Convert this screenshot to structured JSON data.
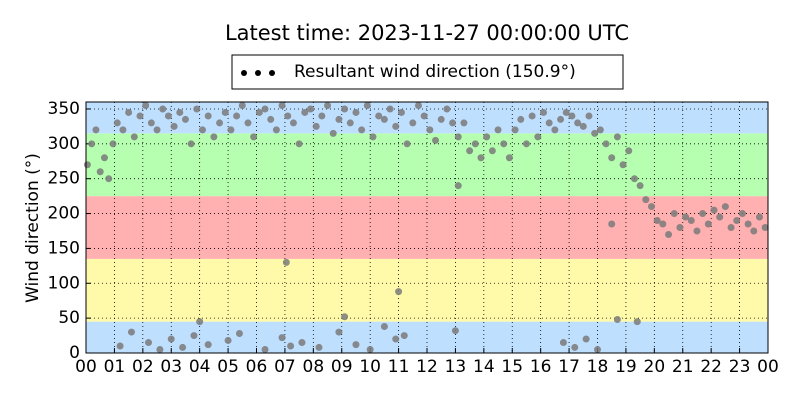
{
  "chart_data": {
    "type": "scatter",
    "title": "Latest time: 2023-11-27 00:00:00 UTC",
    "y_label": "Wind direction (°)",
    "grid": true,
    "legend_position": "top",
    "xlim": [
      0,
      24
    ],
    "xticks": [
      {
        "value": 0,
        "label": "00"
      },
      {
        "value": 1,
        "label": "01"
      },
      {
        "value": 2,
        "label": "02"
      },
      {
        "value": 3,
        "label": "03"
      },
      {
        "value": 4,
        "label": "04"
      },
      {
        "value": 5,
        "label": "05"
      },
      {
        "value": 6,
        "label": "06"
      },
      {
        "value": 7,
        "label": "07"
      },
      {
        "value": 8,
        "label": "08"
      },
      {
        "value": 9,
        "label": "09"
      },
      {
        "value": 10,
        "label": "10"
      },
      {
        "value": 11,
        "label": "11"
      },
      {
        "value": 12,
        "label": "12"
      },
      {
        "value": 13,
        "label": "13"
      },
      {
        "value": 14,
        "label": "14"
      },
      {
        "value": 15,
        "label": "15"
      },
      {
        "value": 16,
        "label": "16"
      },
      {
        "value": 17,
        "label": "17"
      },
      {
        "value": 18,
        "label": "18"
      },
      {
        "value": 19,
        "label": "19"
      },
      {
        "value": 20,
        "label": "20"
      },
      {
        "value": 21,
        "label": "21"
      },
      {
        "value": 22,
        "label": "22"
      },
      {
        "value": 23,
        "label": "23"
      },
      {
        "value": 24,
        "label": "00"
      }
    ],
    "ylim": [
      0,
      360
    ],
    "yticks": [
      0,
      50,
      100,
      150,
      200,
      250,
      300,
      350
    ],
    "bands": [
      {
        "from": 0,
        "to": 45,
        "color": "#bfdfff"
      },
      {
        "from": 45,
        "to": 135,
        "color": "#fffaaa"
      },
      {
        "from": 135,
        "to": 225,
        "color": "#ffb0b0"
      },
      {
        "from": 225,
        "to": 315,
        "color": "#b6ffb0"
      },
      {
        "from": 315,
        "to": 360,
        "color": "#bfdfff"
      }
    ],
    "series": [
      {
        "name": "Resultant wind direction (150.9°)",
        "color": "#7a7a7a",
        "x": [
          0.05,
          0.2,
          0.35,
          0.5,
          0.65,
          0.8,
          0.95,
          1.1,
          1.3,
          1.5,
          1.7,
          1.9,
          2.1,
          2.3,
          2.5,
          2.7,
          2.9,
          3.1,
          3.3,
          3.5,
          3.7,
          3.9,
          4.1,
          4.3,
          4.5,
          4.7,
          4.9,
          5.1,
          5.3,
          5.5,
          5.7,
          5.9,
          6.1,
          6.3,
          6.5,
          6.7,
          6.9,
          7.1,
          7.3,
          7.5,
          7.7,
          7.9,
          8.1,
          8.3,
          8.5,
          8.7,
          8.9,
          9.1,
          9.3,
          9.5,
          9.7,
          9.9,
          10.1,
          10.3,
          10.5,
          10.7,
          10.9,
          11.1,
          11.3,
          11.5,
          11.7,
          11.9,
          12.1,
          12.3,
          12.5,
          12.7,
          12.9,
          13.1,
          13.3,
          13.5,
          13.7,
          13.9,
          14.1,
          14.3,
          14.5,
          14.7,
          14.9,
          15.1,
          15.3,
          15.5,
          15.7,
          15.9,
          16.1,
          16.3,
          16.5,
          16.7,
          16.9,
          17.1,
          17.3,
          17.5,
          17.7,
          17.9,
          18.1,
          18.3,
          18.5,
          18.7,
          18.9,
          19.1,
          19.3,
          19.5,
          19.7,
          19.9,
          20.1,
          20.3,
          20.5,
          20.7,
          20.9,
          21.1,
          21.3,
          21.5,
          21.7,
          21.9,
          22.1,
          22.3,
          22.5,
          22.7,
          22.9,
          23.1,
          23.3,
          23.5,
          23.7,
          23.9,
          1.2,
          1.6,
          2.2,
          2.6,
          3.0,
          3.4,
          3.8,
          4.3,
          5.0,
          5.4,
          6.3,
          6.9,
          7.2,
          7.6,
          8.2,
          8.9,
          9.5,
          10.0,
          10.5,
          10.9,
          11.2,
          13.0,
          16.8,
          17.2,
          17.6,
          18.0,
          7.05,
          11.0,
          9.1,
          18.7,
          19.4,
          13.1,
          18.5,
          4.0
        ],
        "values": [
          270,
          300,
          320,
          260,
          280,
          250,
          300,
          330,
          320,
          345,
          310,
          340,
          355,
          330,
          320,
          350,
          340,
          325,
          345,
          335,
          300,
          350,
          320,
          340,
          310,
          330,
          345,
          320,
          340,
          355,
          330,
          310,
          345,
          350,
          335,
          320,
          355,
          340,
          330,
          300,
          345,
          350,
          325,
          340,
          355,
          315,
          335,
          350,
          330,
          345,
          320,
          355,
          310,
          340,
          335,
          350,
          325,
          345,
          300,
          330,
          355,
          340,
          320,
          305,
          335,
          350,
          330,
          310,
          330,
          290,
          300,
          280,
          310,
          290,
          320,
          300,
          280,
          320,
          335,
          300,
          340,
          310,
          345,
          330,
          320,
          335,
          345,
          340,
          330,
          325,
          340,
          315,
          320,
          300,
          280,
          310,
          270,
          290,
          250,
          240,
          220,
          210,
          190,
          185,
          170,
          200,
          180,
          195,
          190,
          175,
          200,
          185,
          205,
          195,
          210,
          180,
          190,
          200,
          185,
          175,
          195,
          180,
          10,
          30,
          15,
          5,
          20,
          8,
          25,
          12,
          18,
          28,
          5,
          22,
          10,
          15,
          8,
          30,
          12,
          5,
          38,
          20,
          25,
          32,
          15,
          8,
          20,
          5,
          130,
          88,
          52,
          48,
          45,
          240,
          185,
          45
        ]
      }
    ]
  }
}
